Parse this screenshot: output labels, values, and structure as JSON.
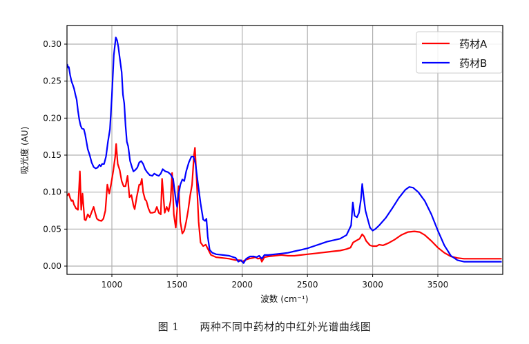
{
  "caption": {
    "figure_number": "图 1",
    "text": "两种不同中药材的中红外光谱曲线图"
  },
  "colors": {
    "series_a": "#ff0000",
    "series_b": "#0000ff",
    "grid": "#b0b0b0",
    "axis": "#000000"
  },
  "chart_data": {
    "type": "line",
    "title": "",
    "xlabel": "波数 (cm⁻¹)",
    "ylabel": "吸光度 (AU)",
    "xlim": [
      657,
      3990
    ],
    "ylim": [
      -0.012,
      0.324
    ],
    "grid": true,
    "legend_position": "upper right",
    "xticks": [
      1000,
      1500,
      2000,
      2500,
      3000,
      3500
    ],
    "yticks": [
      0.0,
      0.05,
      0.1,
      0.15,
      0.2,
      0.25,
      0.3
    ],
    "ytick_labels": [
      "0.00",
      "0.05",
      "0.10",
      "0.15",
      "0.20",
      "0.25",
      "0.30"
    ],
    "series": [
      {
        "name": "药材A",
        "color": "#ff0000",
        "points": [
          [
            657,
            0.095
          ],
          [
            670,
            0.098
          ],
          [
            680,
            0.092
          ],
          [
            690,
            0.088
          ],
          [
            700,
            0.089
          ],
          [
            710,
            0.083
          ],
          [
            725,
            0.078
          ],
          [
            740,
            0.076
          ],
          [
            755,
            0.128
          ],
          [
            765,
            0.076
          ],
          [
            775,
            0.098
          ],
          [
            790,
            0.063
          ],
          [
            800,
            0.062
          ],
          [
            815,
            0.07
          ],
          [
            830,
            0.066
          ],
          [
            845,
            0.073
          ],
          [
            860,
            0.08
          ],
          [
            870,
            0.073
          ],
          [
            885,
            0.064
          ],
          [
            900,
            0.062
          ],
          [
            920,
            0.061
          ],
          [
            935,
            0.064
          ],
          [
            950,
            0.075
          ],
          [
            965,
            0.11
          ],
          [
            980,
            0.098
          ],
          [
            995,
            0.112
          ],
          [
            1010,
            0.128
          ],
          [
            1025,
            0.147
          ],
          [
            1033,
            0.165
          ],
          [
            1045,
            0.138
          ],
          [
            1060,
            0.13
          ],
          [
            1075,
            0.115
          ],
          [
            1090,
            0.108
          ],
          [
            1105,
            0.108
          ],
          [
            1120,
            0.122
          ],
          [
            1135,
            0.093
          ],
          [
            1150,
            0.096
          ],
          [
            1165,
            0.082
          ],
          [
            1175,
            0.077
          ],
          [
            1190,
            0.093
          ],
          [
            1210,
            0.11
          ],
          [
            1220,
            0.11
          ],
          [
            1230,
            0.118
          ],
          [
            1240,
            0.1
          ],
          [
            1255,
            0.09
          ],
          [
            1265,
            0.088
          ],
          [
            1280,
            0.078
          ],
          [
            1295,
            0.072
          ],
          [
            1310,
            0.072
          ],
          [
            1330,
            0.073
          ],
          [
            1345,
            0.08
          ],
          [
            1360,
            0.072
          ],
          [
            1375,
            0.07
          ],
          [
            1385,
            0.118
          ],
          [
            1395,
            0.095
          ],
          [
            1405,
            0.072
          ],
          [
            1420,
            0.08
          ],
          [
            1435,
            0.074
          ],
          [
            1450,
            0.088
          ],
          [
            1462,
            0.126
          ],
          [
            1475,
            0.07
          ],
          [
            1490,
            0.052
          ],
          [
            1500,
            0.075
          ],
          [
            1512,
            0.108
          ],
          [
            1525,
            0.06
          ],
          [
            1540,
            0.044
          ],
          [
            1555,
            0.048
          ],
          [
            1570,
            0.06
          ],
          [
            1585,
            0.075
          ],
          [
            1600,
            0.095
          ],
          [
            1615,
            0.11
          ],
          [
            1630,
            0.15
          ],
          [
            1637,
            0.16
          ],
          [
            1650,
            0.118
          ],
          [
            1665,
            0.06
          ],
          [
            1680,
            0.032
          ],
          [
            1700,
            0.027
          ],
          [
            1720,
            0.029
          ],
          [
            1740,
            0.022
          ],
          [
            1760,
            0.015
          ],
          [
            1800,
            0.012
          ],
          [
            1850,
            0.011
          ],
          [
            1900,
            0.01
          ],
          [
            1950,
            0.008
          ],
          [
            1980,
            0.008
          ],
          [
            2000,
            0.006
          ],
          [
            2020,
            0.008
          ],
          [
            2050,
            0.01
          ],
          [
            2080,
            0.011
          ],
          [
            2100,
            0.012
          ],
          [
            2120,
            0.01
          ],
          [
            2140,
            0.011
          ],
          [
            2150,
            0.006
          ],
          [
            2170,
            0.012
          ],
          [
            2200,
            0.013
          ],
          [
            2250,
            0.014
          ],
          [
            2300,
            0.015
          ],
          [
            2350,
            0.014
          ],
          [
            2400,
            0.014
          ],
          [
            2450,
            0.015
          ],
          [
            2500,
            0.016
          ],
          [
            2550,
            0.017
          ],
          [
            2600,
            0.018
          ],
          [
            2650,
            0.019
          ],
          [
            2700,
            0.02
          ],
          [
            2750,
            0.021
          ],
          [
            2800,
            0.023
          ],
          [
            2830,
            0.025
          ],
          [
            2850,
            0.032
          ],
          [
            2870,
            0.034
          ],
          [
            2900,
            0.037
          ],
          [
            2920,
            0.043
          ],
          [
            2935,
            0.04
          ],
          [
            2950,
            0.034
          ],
          [
            2980,
            0.028
          ],
          [
            3000,
            0.027
          ],
          [
            3030,
            0.027
          ],
          [
            3050,
            0.029
          ],
          [
            3080,
            0.028
          ],
          [
            3120,
            0.031
          ],
          [
            3170,
            0.036
          ],
          [
            3220,
            0.042
          ],
          [
            3270,
            0.046
          ],
          [
            3320,
            0.047
          ],
          [
            3360,
            0.046
          ],
          [
            3400,
            0.042
          ],
          [
            3450,
            0.034
          ],
          [
            3500,
            0.025
          ],
          [
            3550,
            0.018
          ],
          [
            3600,
            0.013
          ],
          [
            3650,
            0.011
          ],
          [
            3700,
            0.01
          ],
          [
            3800,
            0.01
          ],
          [
            3900,
            0.01
          ],
          [
            3990,
            0.01
          ]
        ]
      },
      {
        "name": "药材B",
        "color": "#0000ff",
        "points": [
          [
            657,
            0.273
          ],
          [
            665,
            0.268
          ],
          [
            670,
            0.269
          ],
          [
            680,
            0.258
          ],
          [
            690,
            0.25
          ],
          [
            700,
            0.245
          ],
          [
            710,
            0.24
          ],
          [
            720,
            0.232
          ],
          [
            730,
            0.225
          ],
          [
            740,
            0.21
          ],
          [
            750,
            0.198
          ],
          [
            760,
            0.19
          ],
          [
            770,
            0.186
          ],
          [
            785,
            0.185
          ],
          [
            795,
            0.178
          ],
          [
            805,
            0.168
          ],
          [
            815,
            0.158
          ],
          [
            830,
            0.15
          ],
          [
            845,
            0.14
          ],
          [
            860,
            0.134
          ],
          [
            875,
            0.132
          ],
          [
            890,
            0.133
          ],
          [
            905,
            0.137
          ],
          [
            915,
            0.135
          ],
          [
            925,
            0.138
          ],
          [
            940,
            0.138
          ],
          [
            955,
            0.148
          ],
          [
            970,
            0.168
          ],
          [
            985,
            0.185
          ],
          [
            1000,
            0.23
          ],
          [
            1015,
            0.285
          ],
          [
            1030,
            0.309
          ],
          [
            1040,
            0.305
          ],
          [
            1050,
            0.296
          ],
          [
            1060,
            0.282
          ],
          [
            1075,
            0.262
          ],
          [
            1085,
            0.232
          ],
          [
            1095,
            0.22
          ],
          [
            1105,
            0.19
          ],
          [
            1115,
            0.168
          ],
          [
            1125,
            0.162
          ],
          [
            1140,
            0.142
          ],
          [
            1155,
            0.133
          ],
          [
            1165,
            0.128
          ],
          [
            1180,
            0.13
          ],
          [
            1195,
            0.133
          ],
          [
            1210,
            0.14
          ],
          [
            1225,
            0.142
          ],
          [
            1240,
            0.138
          ],
          [
            1255,
            0.131
          ],
          [
            1270,
            0.127
          ],
          [
            1290,
            0.123
          ],
          [
            1310,
            0.122
          ],
          [
            1325,
            0.125
          ],
          [
            1345,
            0.123
          ],
          [
            1360,
            0.122
          ],
          [
            1375,
            0.125
          ],
          [
            1390,
            0.131
          ],
          [
            1410,
            0.128
          ],
          [
            1430,
            0.127
          ],
          [
            1450,
            0.124
          ],
          [
            1470,
            0.118
          ],
          [
            1490,
            0.09
          ],
          [
            1500,
            0.08
          ],
          [
            1510,
            0.095
          ],
          [
            1525,
            0.11
          ],
          [
            1540,
            0.117
          ],
          [
            1555,
            0.115
          ],
          [
            1570,
            0.128
          ],
          [
            1590,
            0.14
          ],
          [
            1610,
            0.148
          ],
          [
            1625,
            0.148
          ],
          [
            1640,
            0.14
          ],
          [
            1660,
            0.112
          ],
          [
            1680,
            0.085
          ],
          [
            1700,
            0.063
          ],
          [
            1715,
            0.061
          ],
          [
            1725,
            0.064
          ],
          [
            1735,
            0.04
          ],
          [
            1750,
            0.022
          ],
          [
            1770,
            0.018
          ],
          [
            1800,
            0.016
          ],
          [
            1850,
            0.015
          ],
          [
            1900,
            0.014
          ],
          [
            1950,
            0.011
          ],
          [
            1970,
            0.006
          ],
          [
            1990,
            0.008
          ],
          [
            2010,
            0.004
          ],
          [
            2030,
            0.01
          ],
          [
            2060,
            0.013
          ],
          [
            2090,
            0.013
          ],
          [
            2110,
            0.012
          ],
          [
            2130,
            0.014
          ],
          [
            2150,
            0.01
          ],
          [
            2170,
            0.015
          ],
          [
            2200,
            0.015
          ],
          [
            2250,
            0.016
          ],
          [
            2300,
            0.017
          ],
          [
            2350,
            0.018
          ],
          [
            2400,
            0.02
          ],
          [
            2450,
            0.022
          ],
          [
            2500,
            0.024
          ],
          [
            2550,
            0.027
          ],
          [
            2600,
            0.03
          ],
          [
            2650,
            0.033
          ],
          [
            2700,
            0.035
          ],
          [
            2750,
            0.037
          ],
          [
            2800,
            0.042
          ],
          [
            2835,
            0.055
          ],
          [
            2848,
            0.086
          ],
          [
            2862,
            0.068
          ],
          [
            2880,
            0.066
          ],
          [
            2895,
            0.072
          ],
          [
            2910,
            0.09
          ],
          [
            2920,
            0.111
          ],
          [
            2930,
            0.095
          ],
          [
            2945,
            0.075
          ],
          [
            2960,
            0.065
          ],
          [
            2980,
            0.052
          ],
          [
            3000,
            0.048
          ],
          [
            3020,
            0.05
          ],
          [
            3050,
            0.055
          ],
          [
            3100,
            0.065
          ],
          [
            3150,
            0.078
          ],
          [
            3200,
            0.092
          ],
          [
            3250,
            0.103
          ],
          [
            3280,
            0.107
          ],
          [
            3310,
            0.106
          ],
          [
            3350,
            0.1
          ],
          [
            3400,
            0.088
          ],
          [
            3450,
            0.07
          ],
          [
            3500,
            0.048
          ],
          [
            3550,
            0.028
          ],
          [
            3600,
            0.014
          ],
          [
            3650,
            0.008
          ],
          [
            3700,
            0.006
          ],
          [
            3750,
            0.006
          ],
          [
            3800,
            0.006
          ],
          [
            3900,
            0.006
          ],
          [
            3990,
            0.006
          ]
        ]
      }
    ]
  }
}
